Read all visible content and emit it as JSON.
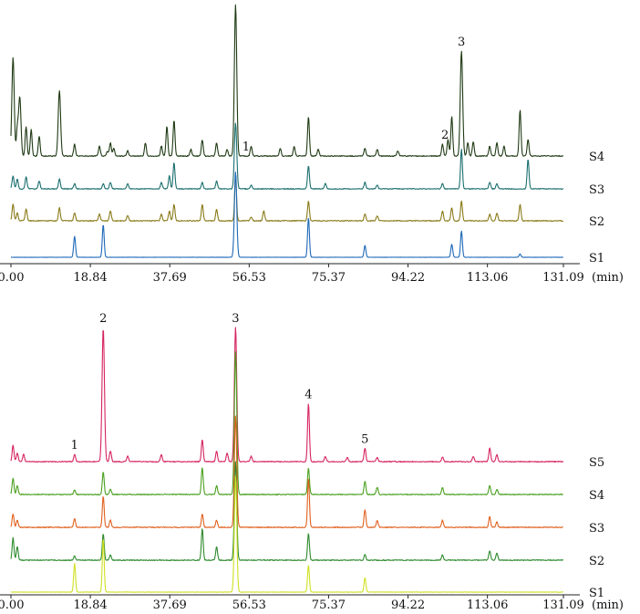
{
  "chart_data": [
    {
      "type": "line",
      "xlabel": "(min)",
      "xlim": [
        0,
        131.09
      ],
      "x_ticks": [
        "0.00",
        "18.84",
        "37.69",
        "56.53",
        "75.37",
        "94.22",
        "113.06",
        "131.09"
      ],
      "series": [
        {
          "name": "S4",
          "color": "#1f3a14",
          "noise": 0.7,
          "peaks": [
            [
              0.5,
              150
            ],
            [
              1.5,
              40
            ],
            [
              2.1,
              90
            ],
            [
              3.6,
              45
            ],
            [
              4.8,
              40
            ],
            [
              6.7,
              30
            ],
            [
              11.5,
              100
            ],
            [
              15.1,
              18
            ],
            [
              21.0,
              15
            ],
            [
              22.9,
              7
            ],
            [
              23.6,
              20
            ],
            [
              24.4,
              12
            ],
            [
              27.7,
              8
            ],
            [
              31.9,
              20
            ],
            [
              35.7,
              15
            ],
            [
              37.0,
              45
            ],
            [
              38.7,
              55
            ],
            [
              42.7,
              10
            ],
            [
              45.4,
              25
            ],
            [
              48.8,
              20
            ],
            [
              51.3,
              10
            ],
            [
              53.3,
              230
            ],
            [
              57.0,
              15
            ],
            [
              63.9,
              12
            ],
            [
              67.2,
              15
            ],
            [
              70.6,
              60
            ],
            [
              72.9,
              10
            ],
            [
              84.0,
              12
            ],
            [
              86.9,
              10
            ],
            [
              91.8,
              8
            ],
            [
              102.4,
              18
            ],
            [
              103.7,
              25
            ],
            [
              104.6,
              60
            ],
            [
              106.9,
              160
            ],
            [
              108.4,
              20
            ],
            [
              109.7,
              22
            ],
            [
              113.6,
              15
            ],
            [
              115.3,
              20
            ],
            [
              117.0,
              15
            ],
            [
              120.8,
              70
            ],
            [
              122.7,
              25
            ]
          ]
        },
        {
          "name": "S3",
          "color": "#1b6e6e",
          "noise": 0.6,
          "peaks": [
            [
              0.5,
              20
            ],
            [
              1.5,
              15
            ],
            [
              3.6,
              18
            ],
            [
              6.7,
              12
            ],
            [
              11.5,
              15
            ],
            [
              15.1,
              8
            ],
            [
              21.9,
              8
            ],
            [
              23.6,
              10
            ],
            [
              27.7,
              8
            ],
            [
              35.7,
              10
            ],
            [
              37.6,
              20
            ],
            [
              38.7,
              40
            ],
            [
              45.4,
              10
            ],
            [
              48.8,
              12
            ],
            [
              53.3,
              100
            ],
            [
              57.0,
              6
            ],
            [
              70.6,
              35
            ],
            [
              74.6,
              8
            ],
            [
              84.0,
              10
            ],
            [
              86.9,
              6
            ],
            [
              102.4,
              8
            ],
            [
              106.9,
              60
            ],
            [
              113.6,
              10
            ],
            [
              115.3,
              8
            ],
            [
              122.7,
              45
            ]
          ]
        },
        {
          "name": "S2",
          "color": "#8a7a18",
          "noise": 0.7,
          "peaks": [
            [
              0.5,
              25
            ],
            [
              1.5,
              12
            ],
            [
              3.6,
              18
            ],
            [
              11.5,
              20
            ],
            [
              15.1,
              12
            ],
            [
              21.0,
              10
            ],
            [
              23.6,
              15
            ],
            [
              27.7,
              8
            ],
            [
              35.7,
              10
            ],
            [
              37.6,
              15
            ],
            [
              38.7,
              25
            ],
            [
              45.4,
              25
            ],
            [
              48.8,
              18
            ],
            [
              53.3,
              70
            ],
            [
              57.0,
              6
            ],
            [
              60.0,
              15
            ],
            [
              70.6,
              30
            ],
            [
              84.0,
              10
            ],
            [
              86.9,
              8
            ],
            [
              102.4,
              15
            ],
            [
              104.6,
              20
            ],
            [
              106.9,
              30
            ],
            [
              113.6,
              10
            ],
            [
              115.3,
              12
            ],
            [
              120.8,
              25
            ]
          ]
        },
        {
          "name": "S1",
          "color": "#1d68b8",
          "noise": 0.1,
          "peaks": [
            [
              15.1,
              32
            ],
            [
              21.9,
              50
            ],
            [
              53.3,
              130
            ],
            [
              70.6,
              60
            ],
            [
              84.0,
              18
            ],
            [
              104.6,
              20
            ],
            [
              106.9,
              40
            ],
            [
              120.8,
              5
            ]
          ]
        }
      ],
      "annotations": [
        {
          "text": "1",
          "x": 54.5
        },
        {
          "text": "2",
          "x": 103.0
        },
        {
          "text": "3",
          "x": 106.9
        }
      ]
    },
    {
      "type": "line",
      "xlabel": "(min)",
      "xlim": [
        0,
        131.09
      ],
      "x_ticks": [
        "0.00",
        "18.84",
        "37.69",
        "56.53",
        "75.37",
        "94.22",
        "113.06",
        "131.09"
      ],
      "series": [
        {
          "name": "S5",
          "color": "#d6245e",
          "noise": 0.5,
          "peaks": [
            [
              0.5,
              18
            ],
            [
              1.5,
              10
            ],
            [
              3.0,
              8
            ],
            [
              15.1,
              8
            ],
            [
              21.9,
              150
            ],
            [
              23.6,
              12
            ],
            [
              27.7,
              6
            ],
            [
              35.7,
              8
            ],
            [
              45.4,
              25
            ],
            [
              48.8,
              12
            ],
            [
              51.3,
              10
            ],
            [
              53.3,
              150
            ],
            [
              57.0,
              6
            ],
            [
              70.6,
              65
            ],
            [
              74.6,
              6
            ],
            [
              79.8,
              5
            ],
            [
              84.0,
              15
            ],
            [
              86.9,
              5
            ],
            [
              102.4,
              5
            ],
            [
              109.7,
              6
            ],
            [
              113.6,
              15
            ],
            [
              115.3,
              8
            ]
          ]
        },
        {
          "name": "S4",
          "color": "#4aa020",
          "noise": 0.5,
          "peaks": [
            [
              0.5,
              18
            ],
            [
              1.5,
              10
            ],
            [
              15.1,
              5
            ],
            [
              21.9,
              25
            ],
            [
              23.6,
              6
            ],
            [
              45.4,
              30
            ],
            [
              48.8,
              10
            ],
            [
              53.3,
              160
            ],
            [
              70.6,
              30
            ],
            [
              84.0,
              15
            ],
            [
              86.9,
              8
            ],
            [
              102.4,
              8
            ],
            [
              113.6,
              10
            ],
            [
              115.3,
              6
            ]
          ]
        },
        {
          "name": "S3",
          "color": "#e0601e",
          "noise": 0.5,
          "peaks": [
            [
              0.5,
              15
            ],
            [
              1.5,
              8
            ],
            [
              15.1,
              10
            ],
            [
              21.9,
              35
            ],
            [
              23.6,
              8
            ],
            [
              45.4,
              15
            ],
            [
              48.8,
              8
            ],
            [
              53.3,
              125
            ],
            [
              70.6,
              55
            ],
            [
              84.0,
              20
            ],
            [
              86.9,
              8
            ],
            [
              102.4,
              8
            ],
            [
              113.6,
              12
            ],
            [
              115.3,
              6
            ]
          ]
        },
        {
          "name": "S2",
          "color": "#2d8a2d",
          "noise": 0.5,
          "peaks": [
            [
              0.5,
              25
            ],
            [
              1.5,
              15
            ],
            [
              15.1,
              5
            ],
            [
              21.9,
              30
            ],
            [
              23.6,
              6
            ],
            [
              45.4,
              35
            ],
            [
              48.8,
              15
            ],
            [
              53.3,
              110
            ],
            [
              70.6,
              30
            ],
            [
              84.0,
              6
            ],
            [
              102.4,
              6
            ],
            [
              113.6,
              10
            ],
            [
              115.3,
              8
            ]
          ]
        },
        {
          "name": "S1",
          "color": "#cfe024",
          "noise": 0.2,
          "peaks": [
            [
              15.1,
              32
            ],
            [
              21.9,
              60
            ],
            [
              53.3,
              130
            ],
            [
              70.6,
              30
            ],
            [
              84.0,
              16
            ]
          ]
        }
      ],
      "annotations": [
        {
          "text": "1",
          "x": 15.1
        },
        {
          "text": "2",
          "x": 21.9
        },
        {
          "text": "3",
          "x": 53.3
        },
        {
          "text": "4",
          "x": 70.6
        },
        {
          "text": "5",
          "x": 84.0
        }
      ]
    }
  ]
}
